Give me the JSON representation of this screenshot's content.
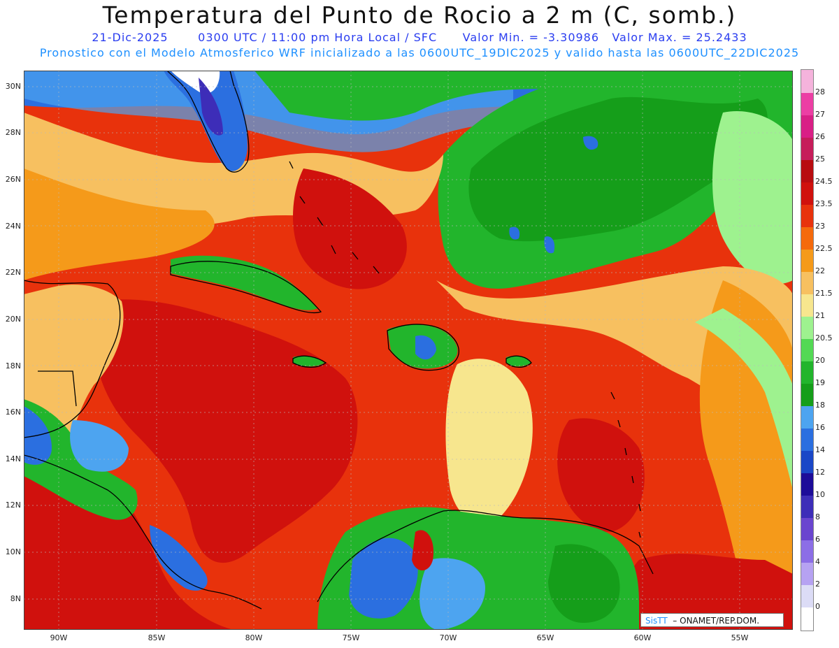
{
  "title": "Temperatura del Punto de Rocio a 2 m (C, somb.)",
  "info_line1": {
    "date": "21-Dic-2025",
    "time": "0300 UTC / 11:00 pm Hora Local / SFC",
    "min": "Valor Min. = -3.30986",
    "max": "Valor Max. = 25.2433"
  },
  "info_line2": "Pronostico con el Modelo Atmosferico WRF inicializado a las 0600UTC_19DIC2025 y valido hasta las  0600UTC_22DIC2025",
  "lat_labels": [
    "30N",
    "28N",
    "26N",
    "24N",
    "22N",
    "20N",
    "18N",
    "16N",
    "14N",
    "12N",
    "10N",
    "8N"
  ],
  "lon_labels": [
    "90W",
    "85W",
    "80W",
    "75W",
    "70W",
    "65W",
    "60W",
    "55W"
  ],
  "colorbar": {
    "labels": [
      "0",
      "2",
      "4",
      "6",
      "8",
      "10",
      "12",
      "14",
      "16",
      "18",
      "19",
      "20",
      "20.5",
      "21",
      "21.5",
      "22",
      "22.5",
      "23",
      "23.5",
      "24.5",
      "25",
      "26",
      "27",
      "28"
    ],
    "colors": [
      "#ffffff",
      "#dcdcf6",
      "#b6a2f2",
      "#8c6ee6",
      "#6a45cf",
      "#3d2db8",
      "#1d0c99",
      "#1a47c7",
      "#2b6fe0",
      "#4da4f0",
      "#159e1a",
      "#22b52c",
      "#53d954",
      "#9ef28f",
      "#f7e68e",
      "#f7c060",
      "#f59a1a",
      "#f56a0c",
      "#e8320c",
      "#d0110d",
      "#b80c10",
      "#c61d5a",
      "#d91f86",
      "#ec3ea4",
      "#f5b3dc"
    ]
  },
  "credit": {
    "brand": "SisTT",
    "org": "ONAMET/REP.DOM."
  }
}
